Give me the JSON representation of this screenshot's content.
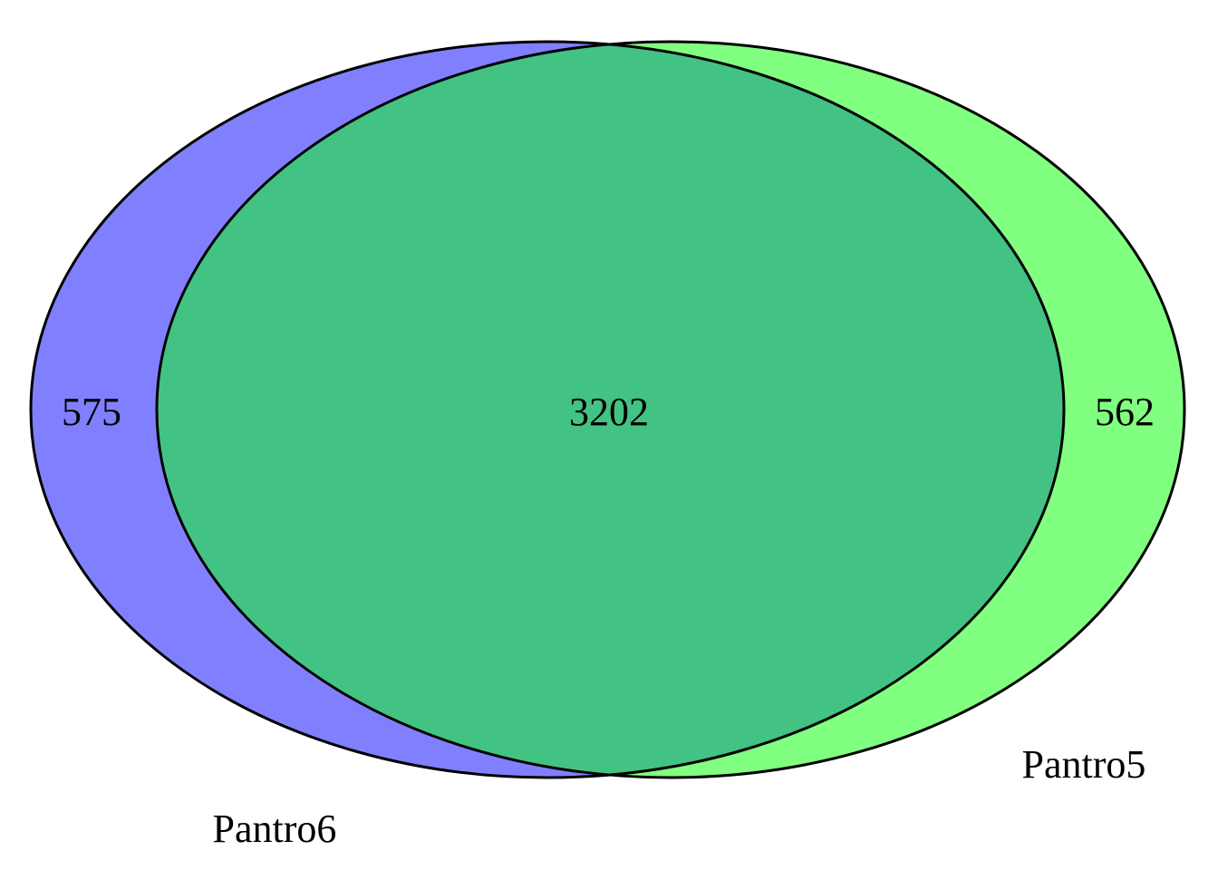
{
  "venn": {
    "sets": [
      {
        "name": "Pantro6",
        "color": "#8080ff",
        "only_count": "575"
      },
      {
        "name": "Pantro5",
        "color": "#80ff80",
        "only_count": "562"
      }
    ],
    "intersection": {
      "count": "3202",
      "color": "#43c383"
    },
    "outline_color": "#000000"
  }
}
